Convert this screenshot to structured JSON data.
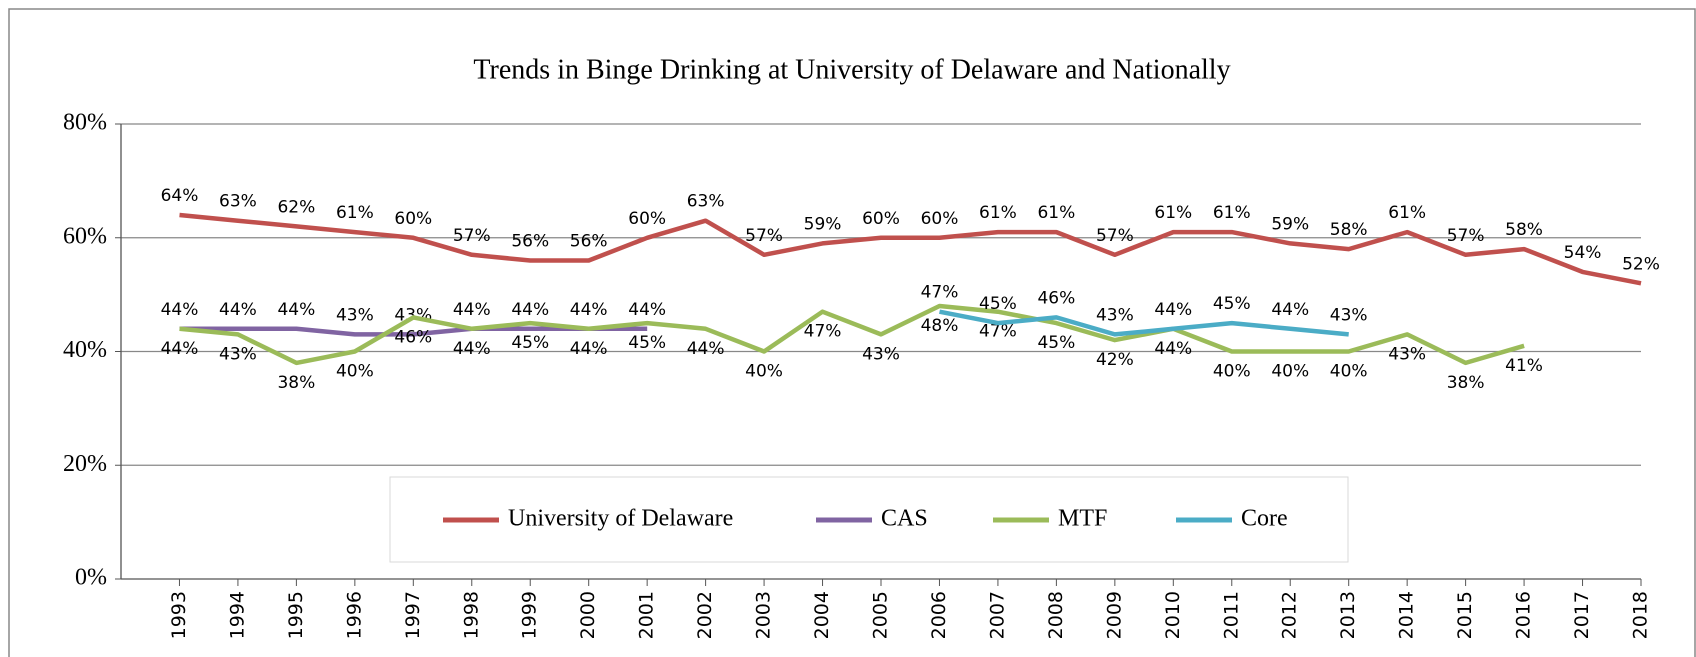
{
  "chart_data": {
    "type": "line",
    "title": "Trends in Binge Drinking at University of Delaware and Nationally",
    "categories": [
      "1993",
      "1994",
      "1995",
      "1996",
      "1997",
      "1998",
      "1999",
      "2000",
      "2001",
      "2002",
      "2003",
      "2004",
      "2005",
      "2006",
      "2007",
      "2008",
      "2009",
      "2010",
      "2011",
      "2012",
      "2013",
      "2014",
      "2015",
      "2016",
      "2017",
      "2018"
    ],
    "ylim": [
      0,
      80
    ],
    "yticks": [
      {
        "value": 0,
        "label": "0%"
      },
      {
        "value": 20,
        "label": "20%"
      },
      {
        "value": 40,
        "label": "40%"
      },
      {
        "value": 60,
        "label": "60%"
      },
      {
        "value": 80,
        "label": "80%"
      }
    ],
    "grid": true,
    "legend": "bottom",
    "series": [
      {
        "name": "University of Delaware",
        "color": "#c0504d",
        "label_side": "above",
        "values": [
          64,
          63,
          62,
          61,
          60,
          57,
          56,
          56,
          60,
          63,
          57,
          59,
          60,
          60,
          61,
          61,
          57,
          61,
          61,
          59,
          58,
          61,
          57,
          58,
          54,
          52
        ],
        "value_labels": [
          "64%",
          "63%",
          "62%",
          "61%",
          "60%",
          "57%",
          "56%",
          "56%",
          "60%",
          "63%",
          "57%",
          "59%",
          "60%",
          "60%",
          "61%",
          "61%",
          "57%",
          "61%",
          "61%",
          "59%",
          "58%",
          "61%",
          "57%",
          "58%",
          "54%",
          "52%"
        ]
      },
      {
        "name": "CAS",
        "color": "#8064a2",
        "label_side": "above",
        "values": [
          44,
          44,
          44,
          43,
          43,
          44,
          44,
          44,
          44,
          null,
          null,
          null,
          null,
          null,
          null,
          null,
          null,
          null,
          null,
          null,
          null,
          null,
          null,
          null,
          null,
          null
        ],
        "value_labels": [
          "44%",
          "44%",
          "44%",
          "43%",
          "43%",
          "44%",
          "44%",
          "44%",
          "44%",
          null,
          null,
          null,
          null,
          null,
          null,
          null,
          null,
          null,
          null,
          null,
          null,
          null,
          null,
          null,
          null,
          null
        ]
      },
      {
        "name": "MTF",
        "color": "#9bbb59",
        "label_side": "below",
        "values": [
          44,
          43,
          38,
          40,
          46,
          44,
          45,
          44,
          45,
          44,
          40,
          47,
          43,
          48,
          47,
          45,
          42,
          44,
          40,
          40,
          40,
          43,
          38,
          41,
          null,
          null
        ],
        "value_labels": [
          "44%",
          "43%",
          "38%",
          "40%",
          "46%",
          "44%",
          "45%",
          "44%",
          "45%",
          "44%",
          "40%",
          "47%",
          "43%",
          "48%",
          "47%",
          "45%",
          "42%",
          "44%",
          "40%",
          "40%",
          "40%",
          "43%",
          "38%",
          "41%",
          null,
          null
        ]
      },
      {
        "name": "Core",
        "color": "#4bacc6",
        "label_side": "above",
        "values": [
          null,
          null,
          null,
          null,
          null,
          null,
          null,
          null,
          null,
          null,
          null,
          null,
          null,
          47,
          45,
          46,
          43,
          44,
          45,
          44,
          43,
          null,
          null,
          null,
          null,
          null
        ],
        "value_labels": [
          null,
          null,
          null,
          null,
          null,
          null,
          null,
          null,
          null,
          null,
          null,
          null,
          null,
          "47%",
          "45%",
          "46%",
          "43%",
          "44%",
          "45%",
          "44%",
          "43%",
          null,
          null,
          null,
          null,
          null
        ]
      }
    ]
  }
}
